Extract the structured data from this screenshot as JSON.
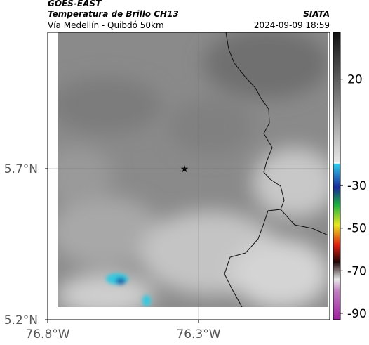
{
  "header": {
    "satellite": "GOES-EAST",
    "product": "Temperatura de Brillo CH13",
    "source": "SIATA",
    "region": "Vía Medellín - Quibdó 50km",
    "datetime": "2024-09-09 18:59"
  },
  "map": {
    "xlim": [
      -76.8,
      -75.865
    ],
    "ylim": [
      5.2,
      6.151
    ],
    "xticks": [
      {
        "value": -76.8,
        "label": "76.8°W"
      },
      {
        "value": -76.3,
        "label": "76.3°W"
      }
    ],
    "yticks": [
      {
        "value": 5.7,
        "label": "5.7°N"
      },
      {
        "value": 5.2,
        "label": "5.2°N"
      }
    ]
  },
  "colorbar": {
    "lim": [
      -93,
      42
    ],
    "ticks": [
      20,
      -30,
      -50,
      -70,
      -90
    ]
  }
}
